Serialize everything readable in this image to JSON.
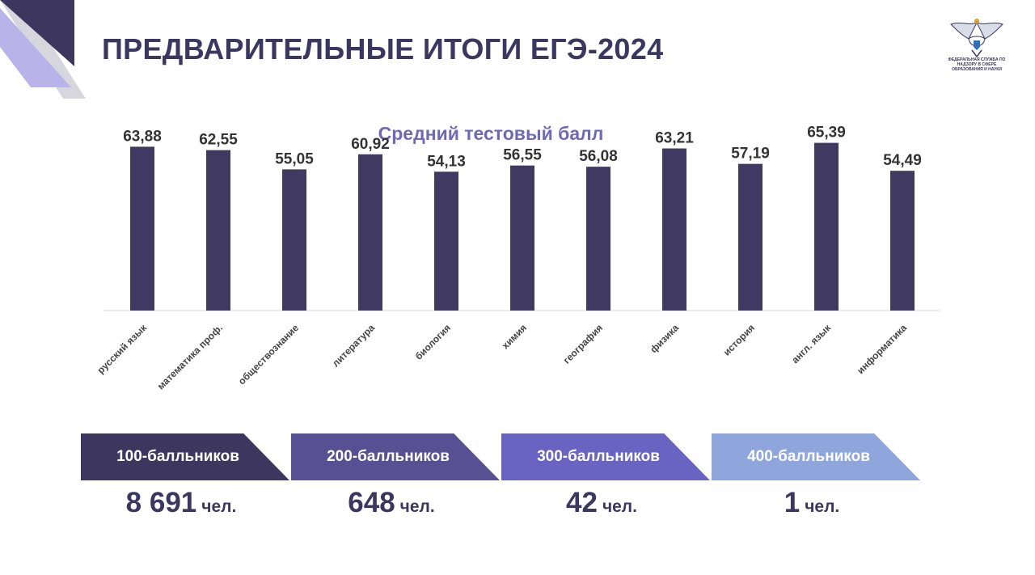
{
  "header": {
    "title": "ПРЕДВАРИТЕЛЬНЫЕ ИТОГИ ЕГЭ-2024",
    "logo_text": "ФЕДЕРАЛЬНАЯ СЛУЖБА ПО НАДЗОРУ В СФЕРЕ ОБРАЗОВАНИЯ И НАУКИ"
  },
  "colors": {
    "bar": "#403a62",
    "title": "#3b3760",
    "subtitle": "#6f68b8",
    "badge_1": "#3d3760",
    "badge_2": "#575193",
    "badge_3": "#6964c2",
    "badge_4": "#8fa6dc"
  },
  "chart_data": {
    "type": "bar",
    "title": "Средний тестовый балл",
    "xlabel": "",
    "ylabel": "",
    "ylim": [
      0,
      70
    ],
    "grid": false,
    "categories": [
      "русский язык",
      "математика проф.",
      "обществознание",
      "литература",
      "биология",
      "химия",
      "география",
      "физика",
      "история",
      "англ. язык",
      "информатика"
    ],
    "values": [
      63.88,
      62.55,
      55.05,
      60.92,
      54.13,
      56.55,
      56.08,
      63.21,
      57.19,
      65.39,
      54.49
    ],
    "value_labels": [
      "63,88",
      "62,55",
      "55,05",
      "60,92",
      "54,13",
      "56,55",
      "56,08",
      "63,21",
      "57,19",
      "65,39",
      "54,49"
    ]
  },
  "summary": [
    {
      "label": "100-балльников",
      "value": "8 691",
      "unit": "чел."
    },
    {
      "label": "200-балльников",
      "value": "648",
      "unit": "чел."
    },
    {
      "label": "300-балльников",
      "value": "42",
      "unit": "чел."
    },
    {
      "label": "400-балльников",
      "value": "1",
      "unit": "чел."
    }
  ]
}
